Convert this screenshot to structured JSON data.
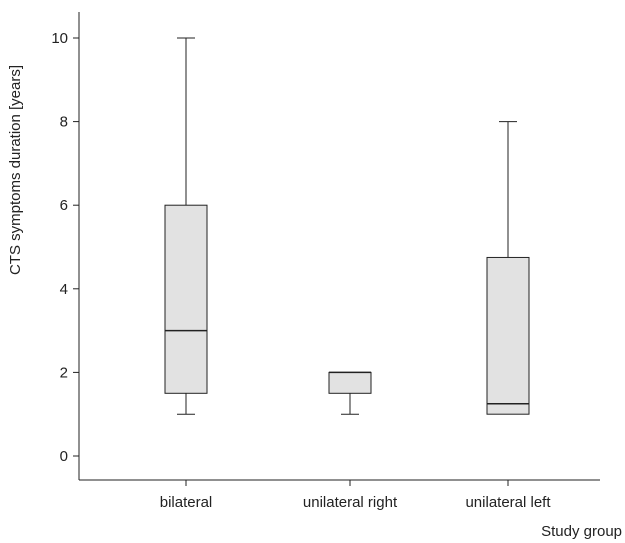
{
  "chart_data": {
    "type": "box",
    "xlabel": "Study group",
    "ylabel": "CTS symptoms duration [years]",
    "ylim": [
      0,
      10
    ],
    "yticks": [
      0,
      2,
      4,
      6,
      8,
      10
    ],
    "categories": [
      "bilateral",
      "unilateral right",
      "unilateral left"
    ],
    "boxes": [
      {
        "category": "bilateral",
        "min": 1,
        "q1": 1.5,
        "median": 3,
        "q3": 6,
        "max": 10
      },
      {
        "category": "unilateral right",
        "min": 1,
        "q1": 1.5,
        "median": 2,
        "q3": 2,
        "max": 2
      },
      {
        "category": "unilateral left",
        "min": 1,
        "q1": 1,
        "median": 1.25,
        "q3": 4.75,
        "max": 8
      }
    ],
    "grid": false,
    "colors": {
      "box_fill": "#e2e2e2",
      "stroke": "#222222"
    }
  }
}
